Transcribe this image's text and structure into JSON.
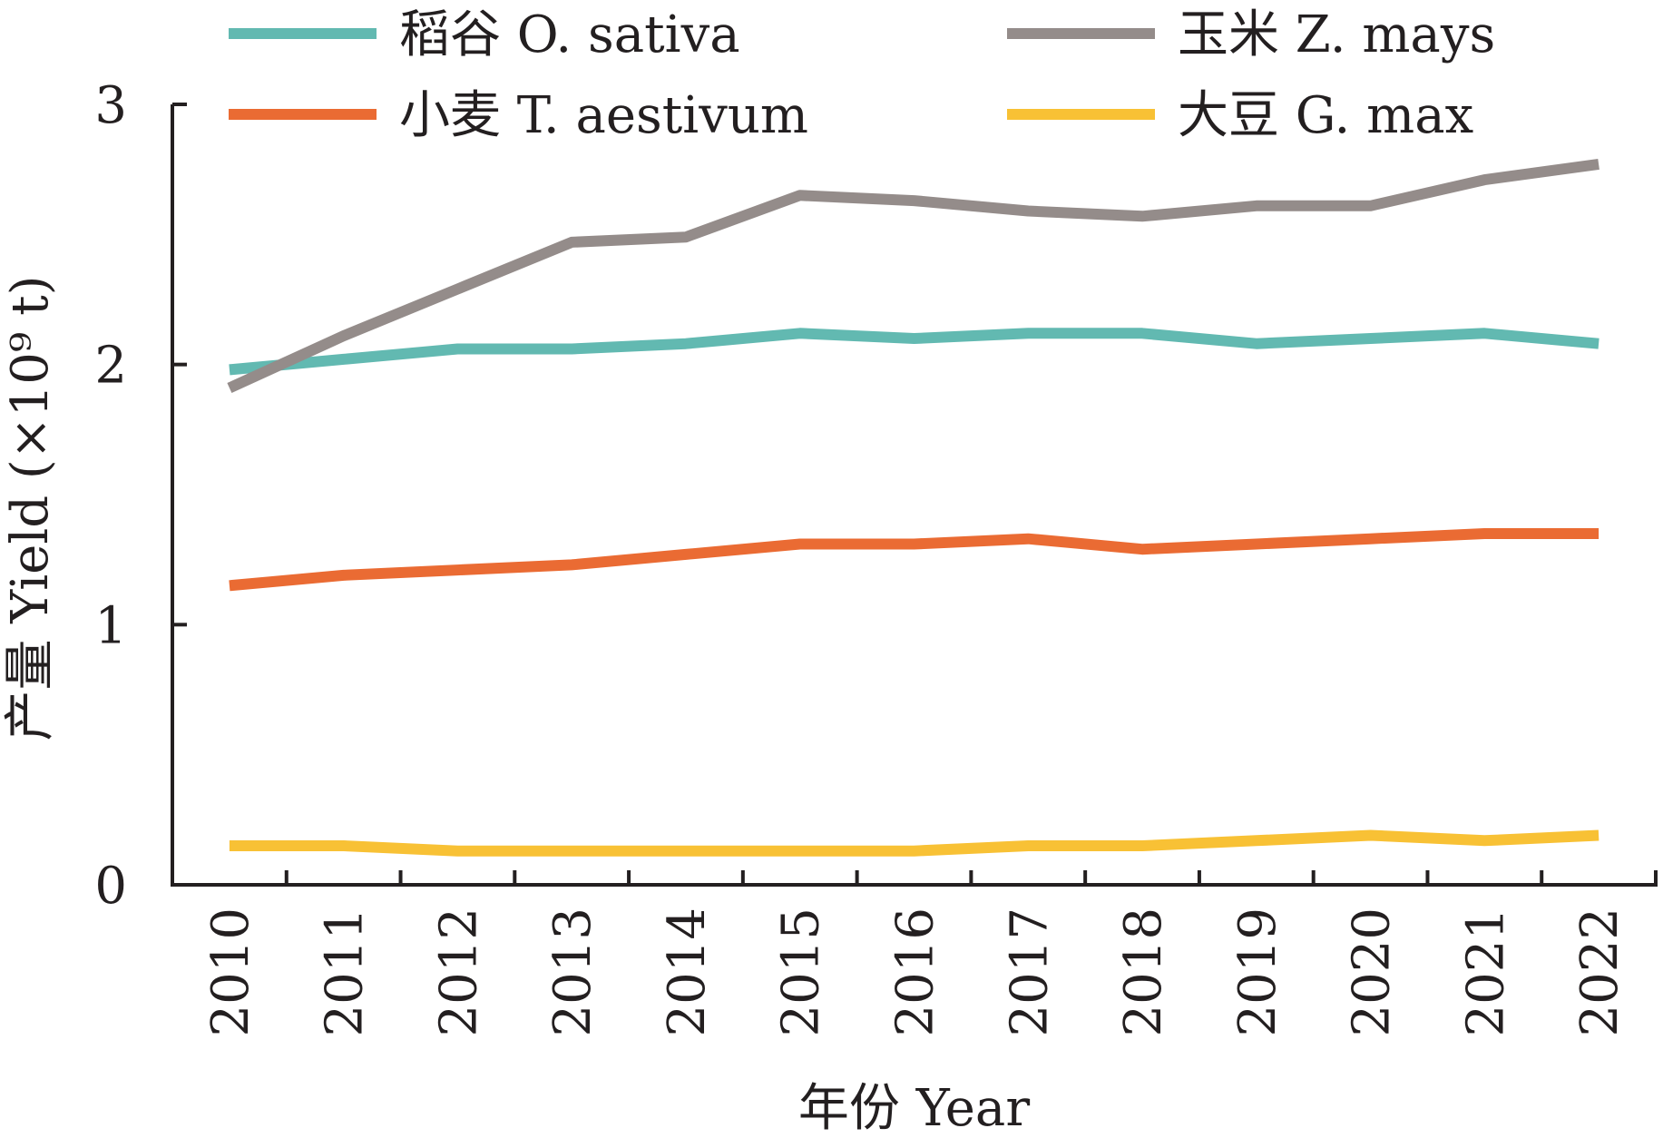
{
  "chart_data": {
    "type": "line",
    "x": [
      "2010",
      "2011",
      "2012",
      "2013",
      "2014",
      "2015",
      "2016",
      "2017",
      "2018",
      "2019",
      "2020",
      "2021",
      "2022"
    ],
    "ylim": [
      0,
      3
    ],
    "yticks": [
      "0",
      "1",
      "2",
      "3"
    ],
    "xlabel": "年份 Year",
    "ylabel": "产量 Yield (×10⁹ t)",
    "grid": false,
    "legend_position": "top",
    "series": [
      {
        "name": "稻谷 O. sativa",
        "color": "#62b9b1",
        "values": [
          1.98,
          2.02,
          2.06,
          2.06,
          2.08,
          2.12,
          2.1,
          2.12,
          2.12,
          2.08,
          2.1,
          2.12,
          2.08
        ]
      },
      {
        "name": "玉米 Z. mays",
        "color": "#948c8a",
        "values": [
          1.91,
          2.11,
          2.29,
          2.47,
          2.49,
          2.65,
          2.63,
          2.59,
          2.57,
          2.61,
          2.61,
          2.71,
          2.77
        ]
      },
      {
        "name": "小麦 T. aestivum",
        "color": "#ea6b33",
        "values": [
          1.15,
          1.19,
          1.21,
          1.23,
          1.27,
          1.31,
          1.31,
          1.33,
          1.29,
          1.31,
          1.33,
          1.35,
          1.35
        ]
      },
      {
        "name": "大豆 G. max",
        "color": "#f8c135",
        "values": [
          0.15,
          0.15,
          0.13,
          0.13,
          0.13,
          0.13,
          0.13,
          0.15,
          0.15,
          0.17,
          0.19,
          0.17,
          0.19
        ]
      }
    ]
  }
}
